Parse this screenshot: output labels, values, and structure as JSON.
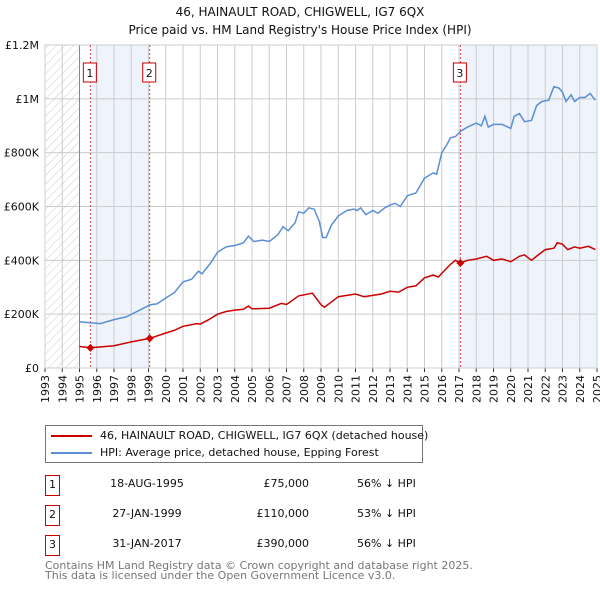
{
  "chart_data": {
    "type": "line",
    "title": "46, HAINAULT ROAD, CHIGWELL, IG7 6QX",
    "subtitle": "Price paid vs. HM Land Registry's House Price Index (HPI)",
    "xlim": [
      1993,
      2025
    ],
    "ylim": [
      0,
      1200000
    ],
    "x_ticks": [
      "1993",
      "1994",
      "1995",
      "1996",
      "1997",
      "1998",
      "1999",
      "2000",
      "2001",
      "2002",
      "2003",
      "2004",
      "2005",
      "2006",
      "2007",
      "2008",
      "2009",
      "2010",
      "2011",
      "2012",
      "2013",
      "2014",
      "2015",
      "2016",
      "2017",
      "2018",
      "2019",
      "2020",
      "2021",
      "2022",
      "2023",
      "2024",
      "2025"
    ],
    "y_ticks": [
      {
        "v": 0,
        "label": "£0"
      },
      {
        "v": 200000,
        "label": "£200K"
      },
      {
        "v": 400000,
        "label": "£400K"
      },
      {
        "v": 600000,
        "label": "£600K"
      },
      {
        "v": 800000,
        "label": "£800K"
      },
      {
        "v": 1000000,
        "label": "£1M"
      },
      {
        "v": 1200000,
        "label": "£1.2M"
      }
    ],
    "grid": true,
    "hatched_range": [
      1993,
      1995
    ],
    "shaded_ranges": [
      [
        1995.63,
        1999.07
      ],
      [
        2017.08,
        2025
      ]
    ],
    "series": [
      {
        "name": "46, HAINAULT ROAD, CHIGWELL, IG7 6QX (detached house)",
        "color": "#cc0000",
        "points": [
          [
            1995,
            80000
          ],
          [
            1995.63,
            75000
          ],
          [
            1996,
            77000
          ],
          [
            1997,
            83000
          ],
          [
            1998,
            97000
          ],
          [
            1999.07,
            110000
          ],
          [
            2000,
            130000
          ],
          [
            2000.5,
            140000
          ],
          [
            2001,
            155000
          ],
          [
            2001.8,
            165000
          ],
          [
            2002,
            163000
          ],
          [
            2002.5,
            180000
          ],
          [
            2003,
            200000
          ],
          [
            2003.5,
            210000
          ],
          [
            2004,
            215000
          ],
          [
            2004.5,
            218000
          ],
          [
            2004.8,
            230000
          ],
          [
            2005,
            220000
          ],
          [
            2006,
            222000
          ],
          [
            2006.7,
            240000
          ],
          [
            2007,
            236000
          ],
          [
            2007.7,
            268000
          ],
          [
            2008.5,
            278000
          ],
          [
            2009,
            235000
          ],
          [
            2009.2,
            226000
          ],
          [
            2010,
            265000
          ],
          [
            2011,
            275000
          ],
          [
            2011.5,
            265000
          ],
          [
            2012.5,
            275000
          ],
          [
            2013,
            285000
          ],
          [
            2013.5,
            282000
          ],
          [
            2014,
            300000
          ],
          [
            2014.5,
            305000
          ],
          [
            2015,
            335000
          ],
          [
            2015.5,
            345000
          ],
          [
            2015.8,
            338000
          ],
          [
            2016.5,
            385000
          ],
          [
            2016.8,
            400000
          ],
          [
            2017.08,
            390000
          ],
          [
            2017.5,
            400000
          ],
          [
            2018,
            405000
          ],
          [
            2018.6,
            415000
          ],
          [
            2019,
            400000
          ],
          [
            2019.5,
            405000
          ],
          [
            2020,
            395000
          ],
          [
            2020.5,
            415000
          ],
          [
            2020.8,
            420000
          ],
          [
            2021.2,
            400000
          ],
          [
            2021.6,
            420000
          ],
          [
            2022,
            440000
          ],
          [
            2022.5,
            445000
          ],
          [
            2022.7,
            465000
          ],
          [
            2023,
            460000
          ],
          [
            2023.3,
            440000
          ],
          [
            2023.7,
            450000
          ],
          [
            2024,
            445000
          ],
          [
            2024.5,
            452000
          ],
          [
            2024.9,
            440000
          ]
        ]
      },
      {
        "name": "HPI: Average price, detached house, Epping Forest",
        "color": "#5b8fd4",
        "points": [
          [
            1995,
            172000
          ],
          [
            1995.6,
            168000
          ],
          [
            1996.2,
            165000
          ],
          [
            1997,
            180000
          ],
          [
            1997.7,
            190000
          ],
          [
            1998.5,
            215000
          ],
          [
            1999.1,
            235000
          ],
          [
            1999.5,
            238000
          ],
          [
            2000,
            260000
          ],
          [
            2000.5,
            280000
          ],
          [
            2001,
            320000
          ],
          [
            2001.5,
            330000
          ],
          [
            2001.9,
            360000
          ],
          [
            2002.1,
            350000
          ],
          [
            2002.6,
            390000
          ],
          [
            2003,
            430000
          ],
          [
            2003.5,
            450000
          ],
          [
            2004,
            455000
          ],
          [
            2004.5,
            465000
          ],
          [
            2004.8,
            490000
          ],
          [
            2005.1,
            470000
          ],
          [
            2005.6,
            475000
          ],
          [
            2006,
            470000
          ],
          [
            2006.5,
            495000
          ],
          [
            2006.8,
            525000
          ],
          [
            2007.1,
            510000
          ],
          [
            2007.5,
            540000
          ],
          [
            2007.7,
            580000
          ],
          [
            2008,
            575000
          ],
          [
            2008.3,
            595000
          ],
          [
            2008.6,
            590000
          ],
          [
            2008.9,
            545000
          ],
          [
            2009.1,
            485000
          ],
          [
            2009.3,
            485000
          ],
          [
            2009.6,
            530000
          ],
          [
            2010,
            565000
          ],
          [
            2010.5,
            585000
          ],
          [
            2010.9,
            590000
          ],
          [
            2011.1,
            585000
          ],
          [
            2011.3,
            595000
          ],
          [
            2011.6,
            570000
          ],
          [
            2012,
            585000
          ],
          [
            2012.3,
            575000
          ],
          [
            2012.7,
            595000
          ],
          [
            2013,
            605000
          ],
          [
            2013.3,
            612000
          ],
          [
            2013.6,
            600000
          ],
          [
            2014,
            640000
          ],
          [
            2014.5,
            650000
          ],
          [
            2015,
            705000
          ],
          [
            2015.5,
            725000
          ],
          [
            2015.7,
            720000
          ],
          [
            2016,
            800000
          ],
          [
            2016.3,
            830000
          ],
          [
            2016.5,
            855000
          ],
          [
            2016.8,
            860000
          ],
          [
            2017.1,
            880000
          ],
          [
            2017.5,
            895000
          ],
          [
            2018,
            910000
          ],
          [
            2018.3,
            900000
          ],
          [
            2018.5,
            935000
          ],
          [
            2018.7,
            895000
          ],
          [
            2019,
            905000
          ],
          [
            2019.5,
            905000
          ],
          [
            2020,
            890000
          ],
          [
            2020.2,
            935000
          ],
          [
            2020.5,
            945000
          ],
          [
            2020.8,
            915000
          ],
          [
            2021.2,
            920000
          ],
          [
            2021.5,
            975000
          ],
          [
            2021.8,
            990000
          ],
          [
            2022.2,
            995000
          ],
          [
            2022.5,
            1045000
          ],
          [
            2022.8,
            1040000
          ],
          [
            2023,
            1025000
          ],
          [
            2023.2,
            990000
          ],
          [
            2023.5,
            1015000
          ],
          [
            2023.7,
            990000
          ],
          [
            2024,
            1005000
          ],
          [
            2024.3,
            1005000
          ],
          [
            2024.6,
            1020000
          ],
          [
            2024.9,
            995000
          ]
        ]
      }
    ],
    "sales": [
      {
        "n": "1",
        "x": 1995.63,
        "price": 75000,
        "date": "18-AUG-1995",
        "price_label": "£75,000",
        "hpi": "56% ↓ HPI"
      },
      {
        "n": "2",
        "x": 1999.07,
        "price": 110000,
        "date": "27-JAN-1999",
        "price_label": "£110,000",
        "hpi": "53% ↓ HPI"
      },
      {
        "n": "3",
        "x": 2017.08,
        "price": 390000,
        "date": "31-JAN-2017",
        "price_label": "£390,000",
        "hpi": "56% ↓ HPI"
      }
    ]
  },
  "footer": {
    "line1": "Contains HM Land Registry data © Crown copyright and database right 2025.",
    "line2": "This data is licensed under the Open Government Licence v3.0."
  }
}
